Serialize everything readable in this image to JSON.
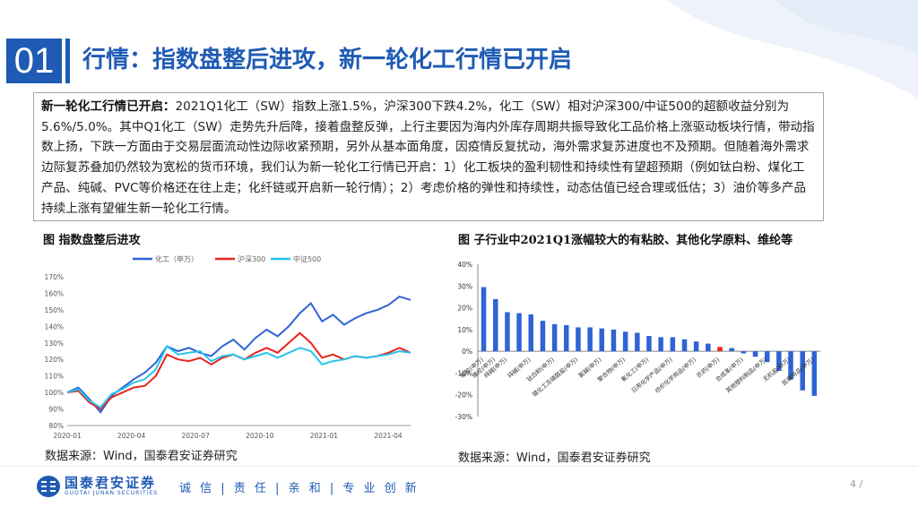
{
  "section": {
    "number": "01",
    "title": "行情：指数盘整后进攻，新一轮化工行情已开启"
  },
  "summary": {
    "lead": "新一轮化工行情已开启：",
    "body": "2021Q1化工（SW）指数上涨1.5%，沪深300下跌4.2%，化工（SW）相对沪深300/中证500的超额收益分别为5.6%/5.0%。其中Q1化工（SW）走势先升后降，接着盘整反弹，上行主要因为海内外库存周期共振导致化工品价格上涨驱动板块行情，带动指数上扬，下跌一方面由于交易层面流动性边际收紧预期，另外从基本面角度，因疫情反复扰动，海外需求复苏进度也不及预期。但随着海外需求边际复苏叠加仍然较为宽松的货币环境，我们认为新一轮化工行情已开启：1）化工板块的盈利韧性和持续性有望超预期（例如钛白粉、煤化工产品、纯碱、PVC等价格还在往上走；化纤链或开启新一轮行情）；2）考虑价格的弹性和持续性，动态估值已经合理或低估；3）油价等多产品持续上涨有望催生新一轮化工行情。"
  },
  "left_chart": {
    "caption": "图 指数盘整后进攻",
    "source": "数据来源：Wind，国泰君安证券研究"
  },
  "right_chart": {
    "caption": "图 子行业中2021Q1涨幅较大的有粘胶、其他化学原料、维纶等",
    "source": "数据来源：Wind，国泰君安证券研究"
  },
  "footer": {
    "logo_cn": "国泰君安证券",
    "logo_en": "GUOTAI JUNAN SECURITIES",
    "slogan": "诚 信 | 责 任 | 亲 和 | 专 业  创 新",
    "page": "4 /"
  },
  "colors": {
    "brand": "#1f5bb4",
    "chemical": "#2f63d6",
    "hs300": "#e8241c",
    "csi500": "#26c4ec",
    "bar": "#2f63d6",
    "bar_highlight": "#e8241c"
  },
  "chart_data": [
    {
      "type": "line",
      "legend": [
        "化工（申万）",
        "沪深300",
        "中证500"
      ],
      "x_ticks": [
        "2020-01",
        "2020-04",
        "2020-07",
        "2020-10",
        "2021-01",
        "2021-04"
      ],
      "y_ticks": [
        "80%",
        "90%",
        "100%",
        "110%",
        "120%",
        "130%",
        "140%",
        "150%",
        "160%",
        "170%"
      ],
      "ylim": [
        80,
        170
      ],
      "x_index_range": [
        0,
        62
      ],
      "series": [
        {
          "name": "化工（申万）",
          "x": [
            0,
            2,
            4,
            6,
            8,
            10,
            12,
            14,
            16,
            18,
            20,
            22,
            24,
            26,
            28,
            30,
            32,
            34,
            36,
            38,
            40,
            42,
            44,
            46,
            48,
            50,
            52,
            54,
            56,
            58,
            60,
            62
          ],
          "values": [
            100,
            103,
            96,
            88,
            98,
            103,
            108,
            112,
            118,
            128,
            125,
            127,
            124,
            122,
            128,
            132,
            126,
            133,
            138,
            134,
            140,
            148,
            154,
            143,
            147,
            141,
            145,
            148,
            150,
            153,
            158,
            156
          ]
        },
        {
          "name": "沪深300",
          "x": [
            0,
            2,
            4,
            6,
            8,
            10,
            12,
            14,
            16,
            18,
            20,
            22,
            24,
            26,
            28,
            30,
            32,
            34,
            36,
            38,
            40,
            42,
            44,
            46,
            48,
            50,
            52,
            54,
            56,
            58,
            60,
            62
          ],
          "values": [
            100,
            101,
            94,
            90,
            97,
            100,
            103,
            104,
            110,
            123,
            120,
            119,
            121,
            117,
            121,
            123,
            120,
            124,
            127,
            124,
            130,
            136,
            130,
            121,
            123,
            120,
            122,
            121,
            122,
            124,
            127,
            124
          ]
        },
        {
          "name": "中证500",
          "x": [
            0,
            2,
            4,
            6,
            8,
            10,
            12,
            14,
            16,
            18,
            20,
            22,
            24,
            26,
            28,
            30,
            32,
            34,
            36,
            38,
            40,
            42,
            44,
            46,
            48,
            50,
            52,
            54,
            56,
            58,
            60,
            62
          ],
          "values": [
            100,
            102,
            95,
            91,
            99,
            102,
            106,
            108,
            114,
            128,
            123,
            124,
            125,
            119,
            122,
            123,
            120,
            122,
            124,
            121,
            124,
            127,
            125,
            117,
            119,
            120,
            122,
            121,
            122,
            123,
            125,
            124
          ]
        }
      ]
    },
    {
      "type": "bar",
      "y_ticks": [
        "40%",
        "30%",
        "20%",
        "10%",
        "0%",
        "-10%",
        "-20%",
        "-30%"
      ],
      "ylim": [
        -30,
        40
      ],
      "categories": [
        "粘胶(申万)",
        "维纶(申万)",
        "纯碱(申万)",
        "",
        "纯碱(申万)",
        "",
        "钛白粉(申万)",
        "",
        "磷化工及磷酸盐(申万)",
        "",
        "氯碱(申万)",
        "",
        "聚合物(申万)",
        "",
        "氟化工(申万)",
        "",
        "日用化学产品(申万)",
        "",
        "纺织化学用品(申万)",
        "",
        "农药(申万)",
        "",
        "合成革(申万)",
        "",
        "其他塑料制品(申万)",
        "",
        "无机盐(申万)",
        "",
        "民爆用品(申万)"
      ],
      "values": [
        29.5,
        24,
        18,
        17.5,
        17,
        14,
        12.5,
        12,
        11,
        11,
        10.5,
        10,
        9,
        8.5,
        7,
        6.5,
        6.5,
        5.5,
        4.5,
        3.5,
        2,
        1.5,
        -1,
        -2.5,
        -5,
        -9,
        -13,
        -18,
        -20.5
      ],
      "highlight_index": 20
    }
  ]
}
